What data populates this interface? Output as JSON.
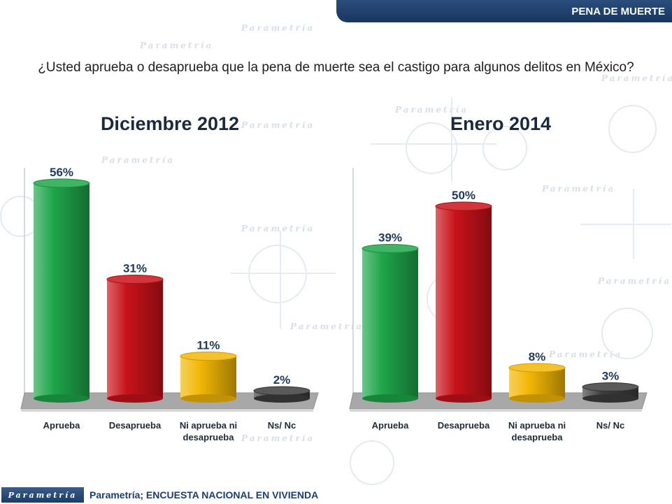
{
  "header": {
    "tag": "PENA DE MUERTE"
  },
  "question": "¿Usted aprueba o desaprueba que la pena de muerte sea el castigo para algunos delitos en México?",
  "watermark": {
    "word": "Parametría",
    "glyphs": [
      "x",
      "y",
      "z"
    ]
  },
  "footer": {
    "logo_text": "Parametría",
    "source": "Parametría; ENCUESTA NACIONAL  EN VIVIENDA"
  },
  "colors": {
    "aprueba": "#1fa64a",
    "desaprueba": "#c8121a",
    "ni": "#f2b705",
    "nsnc": "#3d3d3d",
    "header": "#1f426f"
  },
  "chart_data": [
    {
      "type": "bar",
      "title": "Diciembre 2012",
      "categories": [
        "Aprueba",
        "Desaprueba",
        "Ni aprueba ni desaprueba",
        "Ns/ Nc"
      ],
      "category_lines": [
        [
          "Aprueba"
        ],
        [
          "Desaprueba"
        ],
        [
          "Ni aprueba ni",
          "desaprueba"
        ],
        [
          "Ns/ Nc"
        ]
      ],
      "values": [
        56,
        31,
        11,
        2
      ],
      "value_labels": [
        "56%",
        "31%",
        "11%",
        "2%"
      ],
      "colors": [
        "#1fa64a",
        "#c8121a",
        "#f2b705",
        "#3d3d3d"
      ],
      "ylim": [
        0,
        60
      ],
      "grid": false,
      "legend": "none"
    },
    {
      "type": "bar",
      "title": "Enero 2014",
      "categories": [
        "Aprueba",
        "Desaprueba",
        "Ni aprueba ni desaprueba",
        "Ns/ Nc"
      ],
      "category_lines": [
        [
          "Aprueba"
        ],
        [
          "Desaprueba"
        ],
        [
          "Ni aprueba ni",
          "desaprueba"
        ],
        [
          "Ns/ Nc"
        ]
      ],
      "values": [
        39,
        50,
        8,
        3
      ],
      "value_labels": [
        "39%",
        "50%",
        "8%",
        "3%"
      ],
      "colors": [
        "#1fa64a",
        "#c8121a",
        "#f2b705",
        "#3d3d3d"
      ],
      "ylim": [
        0,
        60
      ],
      "grid": false,
      "legend": "none"
    }
  ]
}
